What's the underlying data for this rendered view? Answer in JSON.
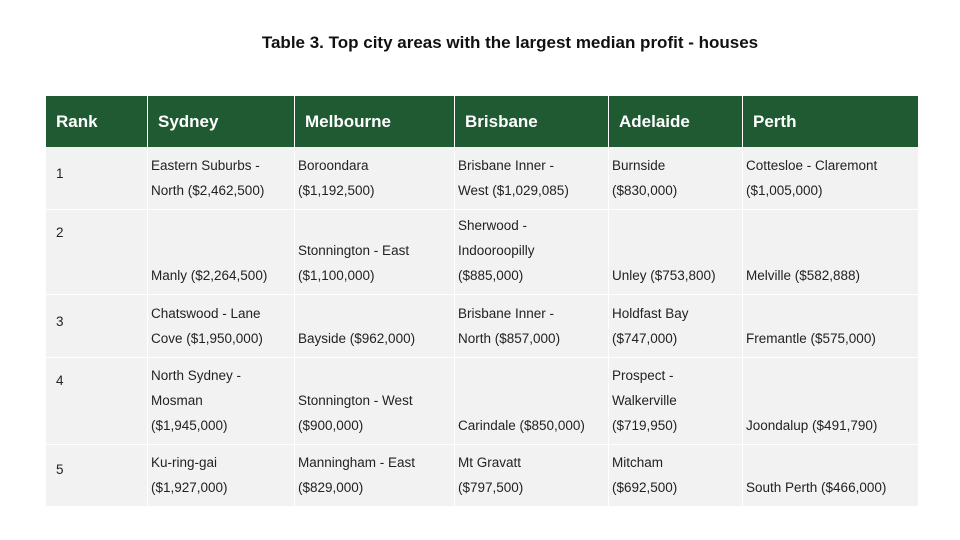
{
  "title": "Table 3. Top city areas with the largest median profit - houses",
  "header": {
    "rank": "Rank",
    "sydney": "Sydney",
    "melbourne": "Melbourne",
    "brisbane": "Brisbane",
    "adelaide": "Adelaide",
    "perth": "Perth"
  },
  "rows": [
    {
      "rank": "1",
      "sydney": [
        "Eastern Suburbs -",
        "North ($2,462,500)"
      ],
      "melbourne": [
        "Boroondara",
        "($1,192,500)"
      ],
      "brisbane": [
        "Brisbane Inner -",
        "West ($1,029,085)"
      ],
      "adelaide": [
        "Burnside",
        "($830,000)"
      ],
      "perth": [
        "Cottesloe - Claremont",
        "($1,005,000)"
      ]
    },
    {
      "rank": "2",
      "sydney": [
        "Manly ($2,264,500)"
      ],
      "melbourne": [
        "Stonnington - East",
        "($1,100,000)"
      ],
      "brisbane": [
        "Sherwood -",
        "Indooroopilly",
        "($885,000)"
      ],
      "adelaide": [
        "Unley ($753,800)"
      ],
      "perth": [
        "Melville ($582,888)"
      ]
    },
    {
      "rank": "3",
      "sydney": [
        "Chatswood - Lane",
        "Cove ($1,950,000)"
      ],
      "melbourne": [
        "Bayside ($962,000)"
      ],
      "brisbane": [
        "Brisbane Inner -",
        "North ($857,000)"
      ],
      "adelaide": [
        "Holdfast Bay",
        "($747,000)"
      ],
      "perth": [
        "Fremantle ($575,000)"
      ]
    },
    {
      "rank": "4",
      "sydney": [
        "North Sydney -",
        "Mosman",
        "($1,945,000)"
      ],
      "melbourne": [
        "Stonnington - West",
        "($900,000)"
      ],
      "brisbane": [
        "Carindale ($850,000)"
      ],
      "adelaide": [
        "Prospect -",
        "Walkerville",
        "($719,950)"
      ],
      "perth": [
        "Joondalup ($491,790)"
      ]
    },
    {
      "rank": "5",
      "sydney": [
        "Ku-ring-gai",
        "($1,927,000)"
      ],
      "melbourne": [
        "Manningham - East",
        "($829,000)"
      ],
      "brisbane": [
        "Mt Gravatt",
        "($797,500)"
      ],
      "adelaide": [
        "Mitcham",
        "($692,500)"
      ],
      "perth": [
        "South Perth ($466,000)"
      ]
    }
  ],
  "colors": {
    "header_bg": "#1f5a32",
    "header_text": "#ffffff",
    "cell_bg": "#f2f2f2"
  }
}
